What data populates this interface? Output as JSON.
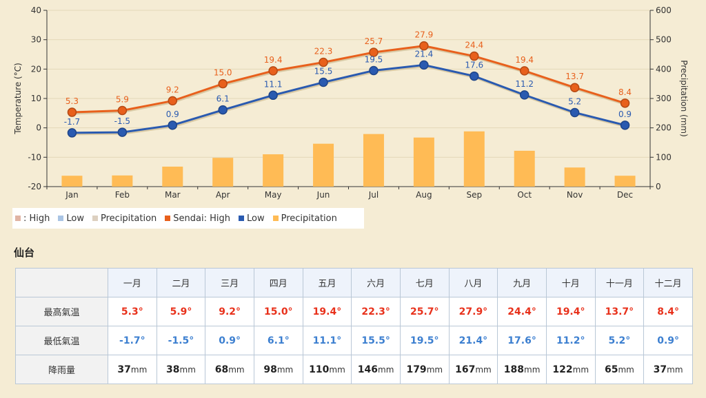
{
  "chart_data": {
    "type": "line",
    "categories": [
      "Jan",
      "Feb",
      "Mar",
      "Apr",
      "May",
      "Jun",
      "Jul",
      "Aug",
      "Sep",
      "Oct",
      "Nov",
      "Dec"
    ],
    "y_left": {
      "label": "Temperature (°C)",
      "range": [
        -20,
        40
      ],
      "ticks": [
        -20,
        -10,
        0,
        10,
        20,
        30,
        40
      ]
    },
    "y_right": {
      "label": "Precipitation (mm)",
      "range": [
        0,
        600
      ],
      "ticks": [
        0,
        100,
        200,
        300,
        400,
        500,
        600
      ]
    },
    "series": [
      {
        "name": "Sendai: High",
        "kind": "line",
        "axis": "left",
        "color": "#e8601c",
        "values": [
          5.3,
          5.9,
          9.2,
          15.0,
          19.4,
          22.3,
          25.7,
          27.9,
          24.4,
          19.4,
          13.7,
          8.4
        ],
        "labels": [
          "5.3",
          "5.9",
          "9.2",
          "15.0",
          "19.4",
          "22.3",
          "25.7",
          "27.9",
          "24.4",
          "19.4",
          "13.7",
          "8.4"
        ]
      },
      {
        "name": "Low",
        "kind": "line",
        "axis": "left",
        "color": "#2a5ab0",
        "values": [
          -1.7,
          -1.5,
          0.9,
          6.1,
          11.1,
          15.5,
          19.5,
          21.4,
          17.6,
          11.2,
          5.2,
          0.9
        ],
        "labels": [
          "-1.7",
          "-1.5",
          "0.9",
          "6.1",
          "11.1",
          "15.5",
          "19.5",
          "21.4",
          "17.6",
          "11.2",
          "5.2",
          "0.9"
        ]
      },
      {
        "name": "Precipitation",
        "kind": "bar",
        "axis": "right",
        "color": "#ffbb55",
        "values": [
          37,
          38,
          68,
          98,
          110,
          146,
          179,
          167,
          188,
          122,
          65,
          37
        ]
      }
    ],
    "grid": true,
    "legend_position": "bottom-left"
  },
  "legend": {
    "items": [
      {
        "label": ": High",
        "color": "#e0b4a4"
      },
      {
        "label": "Low",
        "color": "#a9c4e4"
      },
      {
        "label": "Precipitation",
        "color": "#ddd0c0"
      },
      {
        "label": "Sendai: High",
        "color": "#e8601c"
      },
      {
        "label": "Low",
        "color": "#2a5ab0"
      },
      {
        "label": "Precipitation",
        "color": "#ffbb55"
      }
    ]
  },
  "table": {
    "title": "仙台",
    "months": [
      "一月",
      "二月",
      "三月",
      "四月",
      "五月",
      "六月",
      "七月",
      "八月",
      "九月",
      "十月",
      "十一月",
      "十二月"
    ],
    "rows": {
      "high": {
        "label": "最高氣温",
        "values": [
          "5.3°",
          "5.9°",
          "9.2°",
          "15.0°",
          "19.4°",
          "22.3°",
          "25.7°",
          "27.9°",
          "24.4°",
          "19.4°",
          "13.7°",
          "8.4°"
        ]
      },
      "low": {
        "label": "最低氣温",
        "values": [
          "-1.7°",
          "-1.5°",
          "0.9°",
          "6.1°",
          "11.1°",
          "15.5°",
          "19.5°",
          "21.4°",
          "17.6°",
          "11.2°",
          "5.2°",
          "0.9°"
        ]
      },
      "precip": {
        "label": "降雨量",
        "unit": "mm",
        "values": [
          "37",
          "38",
          "68",
          "98",
          "110",
          "146",
          "179",
          "167",
          "188",
          "122",
          "65",
          "37"
        ]
      }
    }
  }
}
